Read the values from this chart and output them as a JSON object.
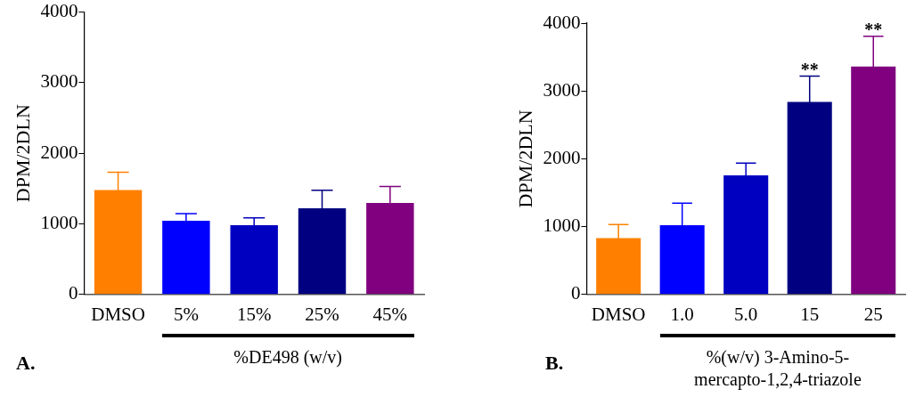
{
  "chart_data": [
    {
      "type": "bar",
      "ylabel": "DPM/2DLN",
      "xlabel": "%DE498 (w/v)",
      "categories": [
        "DMSO",
        "5%",
        "15%",
        "25%",
        "45%"
      ],
      "values": [
        1480,
        1045,
        980,
        1220,
        1295
      ],
      "errors": [
        250,
        100,
        105,
        255,
        235
      ],
      "colors": [
        "#ff8000",
        "#0000ff",
        "#0000c0",
        "#000080",
        "#800080"
      ],
      "ylim": [
        0,
        4000
      ],
      "yticks": [
        0,
        1000,
        2000,
        3000,
        4000
      ],
      "annotations": [
        "A."
      ]
    },
    {
      "type": "bar",
      "ylabel": "DPM/2DLN",
      "xlabel": "%(w/v) 3-Amino-5-mercapto-1,2,4-triazole",
      "categories": [
        "DMSO",
        "1.0",
        "5.0",
        "15",
        "25"
      ],
      "values": [
        830,
        1020,
        1755,
        2840,
        3360
      ],
      "errors": [
        200,
        325,
        180,
        380,
        445
      ],
      "colors": [
        "#ff8000",
        "#0000ff",
        "#0000c0",
        "#000080",
        "#800080"
      ],
      "ylim": [
        0,
        4000
      ],
      "yticks": [
        0,
        1000,
        2000,
        3000,
        4000
      ],
      "annotations": [
        "B.",
        {
          "text": "**",
          "x": "15",
          "y": 3220
        },
        {
          "text": "**",
          "x": "25",
          "y": 3805
        }
      ]
    }
  ]
}
